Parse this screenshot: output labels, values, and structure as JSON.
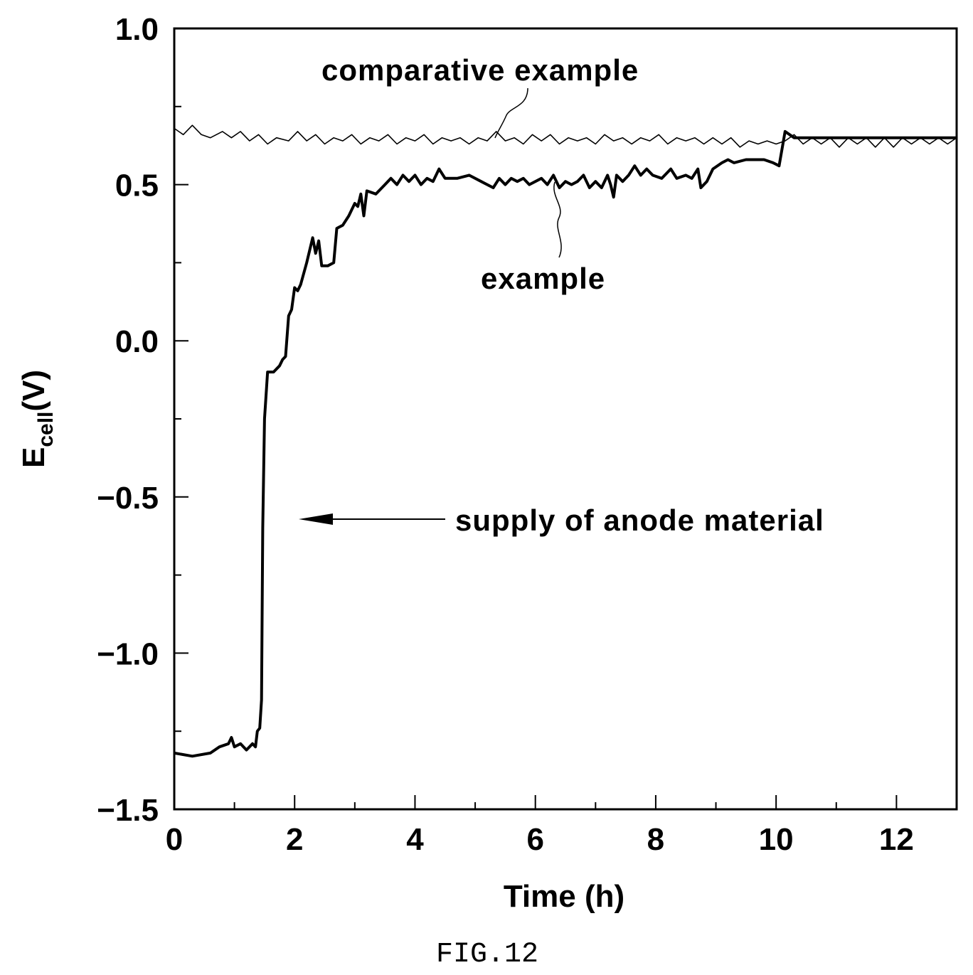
{
  "figure_caption": "FIG.12",
  "chart_data": {
    "type": "line",
    "xlabel": "Time (h)",
    "ylabel_main": "E",
    "ylabel_sub": "cell",
    "ylabel_unit": "(V)",
    "xlim": [
      0,
      13
    ],
    "ylim": [
      -1.5,
      1.0
    ],
    "x_ticks": [
      0,
      2,
      4,
      6,
      8,
      10,
      12
    ],
    "x_tick_labels": [
      "0",
      "2",
      "4",
      "6",
      "8",
      "10",
      "12"
    ],
    "y_ticks": [
      1.0,
      0.5,
      0.0,
      -0.5,
      -1.0,
      -1.5
    ],
    "y_tick_labels": [
      "1.0",
      "0.5",
      "0.0",
      "−0.5",
      "−1.0",
      "−1.5"
    ],
    "grid": false,
    "annotations": {
      "comparative_label": "comparative example",
      "example_label": "example",
      "supply_label": "supply of anode material"
    },
    "series": [
      {
        "name": "comparative example",
        "points": [
          [
            0.0,
            0.68
          ],
          [
            0.15,
            0.66
          ],
          [
            0.3,
            0.69
          ],
          [
            0.45,
            0.66
          ],
          [
            0.6,
            0.65
          ],
          [
            0.8,
            0.67
          ],
          [
            0.95,
            0.65
          ],
          [
            1.1,
            0.67
          ],
          [
            1.25,
            0.64
          ],
          [
            1.4,
            0.66
          ],
          [
            1.55,
            0.63
          ],
          [
            1.7,
            0.65
          ],
          [
            1.9,
            0.64
          ],
          [
            2.05,
            0.67
          ],
          [
            2.2,
            0.64
          ],
          [
            2.35,
            0.66
          ],
          [
            2.5,
            0.63
          ],
          [
            2.65,
            0.65
          ],
          [
            2.8,
            0.64
          ],
          [
            2.95,
            0.66
          ],
          [
            3.1,
            0.63
          ],
          [
            3.25,
            0.65
          ],
          [
            3.4,
            0.64
          ],
          [
            3.55,
            0.66
          ],
          [
            3.7,
            0.63
          ],
          [
            3.85,
            0.65
          ],
          [
            4.0,
            0.64
          ],
          [
            4.15,
            0.66
          ],
          [
            4.3,
            0.63
          ],
          [
            4.45,
            0.65
          ],
          [
            4.6,
            0.64
          ],
          [
            4.75,
            0.65
          ],
          [
            4.9,
            0.63
          ],
          [
            5.05,
            0.65
          ],
          [
            5.2,
            0.64
          ],
          [
            5.35,
            0.67
          ],
          [
            5.5,
            0.64
          ],
          [
            5.65,
            0.65
          ],
          [
            5.8,
            0.63
          ],
          [
            5.95,
            0.66
          ],
          [
            6.1,
            0.64
          ],
          [
            6.25,
            0.66
          ],
          [
            6.4,
            0.63
          ],
          [
            6.55,
            0.65
          ],
          [
            6.7,
            0.64
          ],
          [
            6.85,
            0.65
          ],
          [
            7.0,
            0.63
          ],
          [
            7.15,
            0.66
          ],
          [
            7.3,
            0.64
          ],
          [
            7.45,
            0.65
          ],
          [
            7.6,
            0.63
          ],
          [
            7.75,
            0.65
          ],
          [
            7.9,
            0.64
          ],
          [
            8.05,
            0.66
          ],
          [
            8.2,
            0.63
          ],
          [
            8.35,
            0.65
          ],
          [
            8.5,
            0.64
          ],
          [
            8.65,
            0.65
          ],
          [
            8.8,
            0.63
          ],
          [
            8.95,
            0.65
          ],
          [
            9.1,
            0.63
          ],
          [
            9.25,
            0.65
          ],
          [
            9.4,
            0.62
          ],
          [
            9.55,
            0.64
          ],
          [
            9.7,
            0.63
          ],
          [
            9.85,
            0.64
          ],
          [
            10.0,
            0.63
          ],
          [
            10.15,
            0.64
          ],
          [
            10.3,
            0.66
          ],
          [
            10.45,
            0.63
          ],
          [
            10.6,
            0.65
          ],
          [
            10.75,
            0.63
          ],
          [
            10.9,
            0.65
          ],
          [
            11.05,
            0.62
          ],
          [
            11.2,
            0.65
          ],
          [
            11.35,
            0.63
          ],
          [
            11.5,
            0.65
          ],
          [
            11.65,
            0.62
          ],
          [
            11.8,
            0.65
          ],
          [
            11.95,
            0.62
          ],
          [
            12.1,
            0.65
          ],
          [
            12.25,
            0.63
          ],
          [
            12.4,
            0.65
          ],
          [
            12.55,
            0.63
          ],
          [
            12.7,
            0.65
          ],
          [
            12.85,
            0.63
          ],
          [
            13.0,
            0.65
          ]
        ]
      },
      {
        "name": "example",
        "points": [
          [
            0.0,
            -1.32
          ],
          [
            0.3,
            -1.33
          ],
          [
            0.6,
            -1.32
          ],
          [
            0.75,
            -1.3
          ],
          [
            0.9,
            -1.29
          ],
          [
            0.95,
            -1.27
          ],
          [
            1.0,
            -1.3
          ],
          [
            1.1,
            -1.29
          ],
          [
            1.2,
            -1.31
          ],
          [
            1.3,
            -1.29
          ],
          [
            1.35,
            -1.3
          ],
          [
            1.38,
            -1.25
          ],
          [
            1.42,
            -1.24
          ],
          [
            1.45,
            -1.15
          ],
          [
            1.47,
            -0.6
          ],
          [
            1.5,
            -0.25
          ],
          [
            1.55,
            -0.1
          ],
          [
            1.65,
            -0.1
          ],
          [
            1.75,
            -0.08
          ],
          [
            1.8,
            -0.06
          ],
          [
            1.85,
            -0.05
          ],
          [
            1.9,
            0.08
          ],
          [
            1.95,
            0.1
          ],
          [
            2.0,
            0.17
          ],
          [
            2.05,
            0.16
          ],
          [
            2.1,
            0.18
          ],
          [
            2.2,
            0.25
          ],
          [
            2.3,
            0.33
          ],
          [
            2.35,
            0.28
          ],
          [
            2.4,
            0.32
          ],
          [
            2.45,
            0.24
          ],
          [
            2.55,
            0.24
          ],
          [
            2.65,
            0.25
          ],
          [
            2.7,
            0.36
          ],
          [
            2.8,
            0.37
          ],
          [
            2.9,
            0.4
          ],
          [
            3.0,
            0.44
          ],
          [
            3.05,
            0.43
          ],
          [
            3.1,
            0.47
          ],
          [
            3.15,
            0.4
          ],
          [
            3.2,
            0.48
          ],
          [
            3.35,
            0.47
          ],
          [
            3.5,
            0.5
          ],
          [
            3.6,
            0.52
          ],
          [
            3.7,
            0.5
          ],
          [
            3.8,
            0.53
          ],
          [
            3.9,
            0.51
          ],
          [
            4.0,
            0.53
          ],
          [
            4.1,
            0.5
          ],
          [
            4.2,
            0.52
          ],
          [
            4.3,
            0.51
          ],
          [
            4.4,
            0.55
          ],
          [
            4.5,
            0.52
          ],
          [
            4.7,
            0.52
          ],
          [
            4.9,
            0.53
          ],
          [
            5.1,
            0.51
          ],
          [
            5.3,
            0.49
          ],
          [
            5.4,
            0.52
          ],
          [
            5.5,
            0.5
          ],
          [
            5.6,
            0.52
          ],
          [
            5.7,
            0.51
          ],
          [
            5.8,
            0.52
          ],
          [
            5.9,
            0.5
          ],
          [
            6.1,
            0.52
          ],
          [
            6.2,
            0.5
          ],
          [
            6.3,
            0.53
          ],
          [
            6.4,
            0.49
          ],
          [
            6.5,
            0.51
          ],
          [
            6.6,
            0.5
          ],
          [
            6.7,
            0.51
          ],
          [
            6.8,
            0.53
          ],
          [
            6.9,
            0.49
          ],
          [
            7.0,
            0.51
          ],
          [
            7.1,
            0.49
          ],
          [
            7.2,
            0.53
          ],
          [
            7.25,
            0.5
          ],
          [
            7.3,
            0.46
          ],
          [
            7.35,
            0.53
          ],
          [
            7.45,
            0.51
          ],
          [
            7.55,
            0.53
          ],
          [
            7.65,
            0.56
          ],
          [
            7.75,
            0.53
          ],
          [
            7.85,
            0.55
          ],
          [
            7.95,
            0.53
          ],
          [
            8.1,
            0.52
          ],
          [
            8.25,
            0.55
          ],
          [
            8.35,
            0.52
          ],
          [
            8.5,
            0.53
          ],
          [
            8.6,
            0.52
          ],
          [
            8.7,
            0.55
          ],
          [
            8.75,
            0.49
          ],
          [
            8.85,
            0.51
          ],
          [
            8.95,
            0.55
          ],
          [
            9.1,
            0.57
          ],
          [
            9.2,
            0.58
          ],
          [
            9.3,
            0.57
          ],
          [
            9.5,
            0.58
          ],
          [
            9.8,
            0.58
          ],
          [
            9.95,
            0.57
          ],
          [
            10.05,
            0.56
          ],
          [
            10.15,
            0.67
          ],
          [
            10.3,
            0.65
          ],
          [
            10.6,
            0.65
          ],
          [
            11.0,
            0.65
          ],
          [
            11.5,
            0.65
          ],
          [
            12.0,
            0.65
          ],
          [
            12.5,
            0.65
          ],
          [
            13.0,
            0.65
          ]
        ]
      }
    ]
  }
}
